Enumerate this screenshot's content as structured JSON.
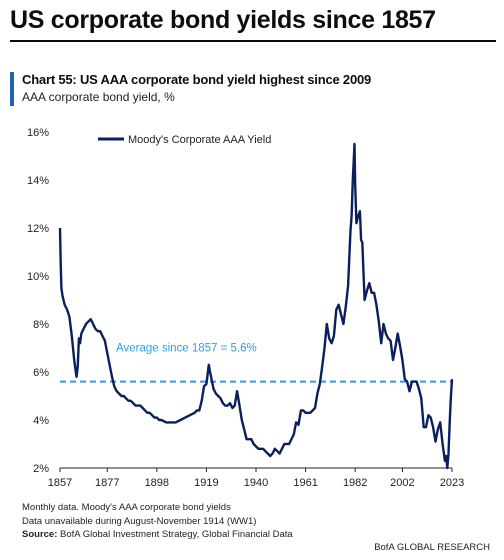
{
  "page_title": "US corporate bond yields since 1857",
  "chart_label": "Chart 55: US AAA corporate bond yield highest since 2009",
  "chart_subtitle": "AAA corporate bond yield, %",
  "chart_data": {
    "type": "line",
    "title": "Chart 55: US AAA corporate bond yield highest since 2009",
    "ylabel": "AAA corporate bond yield, %",
    "xlim": [
      1857,
      2023
    ],
    "ylim": [
      2,
      16
    ],
    "y_ticks": [
      2,
      4,
      6,
      8,
      10,
      12,
      14,
      16
    ],
    "y_tick_labels": [
      "2%",
      "4%",
      "6%",
      "8%",
      "10%",
      "12%",
      "14%",
      "16%"
    ],
    "x_ticks": [
      1857,
      1877,
      1898,
      1919,
      1940,
      1961,
      1982,
      2002,
      2023
    ],
    "x_tick_labels": [
      "1857",
      "1877",
      "1898",
      "1919",
      "1940",
      "1961",
      "1982",
      "2002",
      "2023"
    ],
    "legend": {
      "placement": "top-left"
    },
    "grid": false,
    "series": [
      {
        "name": "Moody's Corporate AAA Yield",
        "color": "#0b1f5c",
        "x": [
          1857,
          1857.3,
          1857.6,
          1858,
          1858.5,
          1859,
          1860,
          1861,
          1862,
          1863,
          1864,
          1864.5,
          1865,
          1865.5,
          1866,
          1867,
          1868,
          1869,
          1870,
          1871,
          1872,
          1873,
          1874,
          1875,
          1876,
          1877,
          1878,
          1879,
          1880,
          1881,
          1882,
          1883,
          1884,
          1885,
          1886,
          1887,
          1888,
          1889,
          1890,
          1891,
          1892,
          1893,
          1894,
          1895,
          1896,
          1897,
          1898,
          1899,
          1900,
          1902,
          1904,
          1906,
          1908,
          1910,
          1912,
          1914,
          1915,
          1916,
          1917,
          1918,
          1919,
          1920,
          1920.5,
          1921,
          1922,
          1923,
          1924,
          1925,
          1926,
          1927,
          1928,
          1929,
          1930,
          1931,
          1932,
          1933,
          1934,
          1935,
          1936,
          1937,
          1938,
          1939,
          1940,
          1941,
          1942,
          1943,
          1944,
          1945,
          1946,
          1947,
          1948,
          1949,
          1950,
          1952,
          1954,
          1956,
          1957,
          1958,
          1959,
          1960,
          1961,
          1962,
          1963,
          1964,
          1965,
          1966,
          1967,
          1968,
          1969,
          1970,
          1971,
          1972,
          1973,
          1974,
          1975,
          1976,
          1977,
          1978,
          1979,
          1980,
          1980.5,
          1981,
          1981.7,
          1982,
          1982.5,
          1983,
          1984,
          1984.5,
          1985,
          1986,
          1987,
          1988,
          1989,
          1990,
          1991,
          1992,
          1993,
          1994,
          1995,
          1996,
          1997,
          1998,
          1999,
          2000,
          2001,
          2002,
          2003,
          2004,
          2005,
          2006,
          2007,
          2008,
          2009,
          2010,
          2011,
          2012,
          2013,
          2014,
          2015,
          2016,
          2017,
          2018,
          2019,
          2020,
          2020.5,
          2021,
          2021.5,
          2022,
          2022.5,
          2023
        ],
        "y": [
          12.0,
          10.5,
          9.5,
          9.2,
          9.0,
          8.8,
          8.6,
          8.3,
          7.5,
          6.5,
          5.8,
          6.2,
          7.4,
          7.2,
          7.6,
          7.8,
          8.0,
          8.1,
          8.2,
          8.0,
          7.8,
          7.7,
          7.7,
          7.5,
          7.3,
          6.8,
          6.3,
          5.8,
          5.4,
          5.2,
          5.1,
          5.0,
          5.0,
          4.9,
          4.8,
          4.8,
          4.7,
          4.6,
          4.6,
          4.6,
          4.5,
          4.4,
          4.3,
          4.3,
          4.2,
          4.1,
          4.1,
          4.0,
          4.0,
          3.9,
          3.9,
          3.9,
          4.0,
          4.1,
          4.2,
          4.3,
          4.4,
          4.4,
          4.8,
          5.4,
          5.5,
          6.3,
          6.0,
          5.8,
          5.3,
          5.1,
          5.0,
          4.9,
          4.7,
          4.6,
          4.6,
          4.7,
          4.5,
          4.6,
          5.2,
          4.6,
          4.0,
          3.6,
          3.2,
          3.2,
          3.2,
          3.0,
          2.9,
          2.8,
          2.8,
          2.8,
          2.7,
          2.6,
          2.5,
          2.6,
          2.8,
          2.7,
          2.6,
          3.0,
          3.0,
          3.4,
          3.9,
          3.8,
          4.4,
          4.4,
          4.3,
          4.3,
          4.3,
          4.4,
          4.5,
          5.1,
          5.5,
          6.2,
          7.0,
          8.0,
          7.4,
          7.2,
          7.5,
          8.6,
          8.8,
          8.4,
          8.0,
          8.7,
          9.6,
          11.9,
          12.5,
          14.0,
          15.5,
          13.8,
          12.2,
          12.4,
          12.7,
          11.5,
          11.4,
          9.0,
          9.4,
          9.7,
          9.3,
          9.3,
          8.8,
          8.1,
          7.2,
          8.0,
          7.6,
          7.4,
          7.3,
          6.5,
          7.0,
          7.6,
          7.1,
          6.5,
          5.7,
          5.6,
          5.2,
          5.6,
          5.6,
          5.6,
          5.3,
          4.9,
          3.7,
          3.7,
          4.2,
          4.1,
          3.7,
          3.1,
          3.6,
          3.9,
          3.0,
          2.3,
          2.5,
          2.0,
          2.6,
          3.8,
          4.9,
          5.7
        ]
      }
    ],
    "reference_line": {
      "value": 5.6,
      "label": "Average since 1857 = 5.6%",
      "color": "#2f9ee0"
    }
  },
  "notes": {
    "line1": "Monthly data. Moody's AAA corporate bond yields",
    "line2": "Data unavailable during August-November 1914  (WW1)",
    "source_label": "Source:",
    "source_text": " BofA Global Investment Strategy, Global Financial Data"
  },
  "branding": "BofA GLOBAL RESEARCH"
}
